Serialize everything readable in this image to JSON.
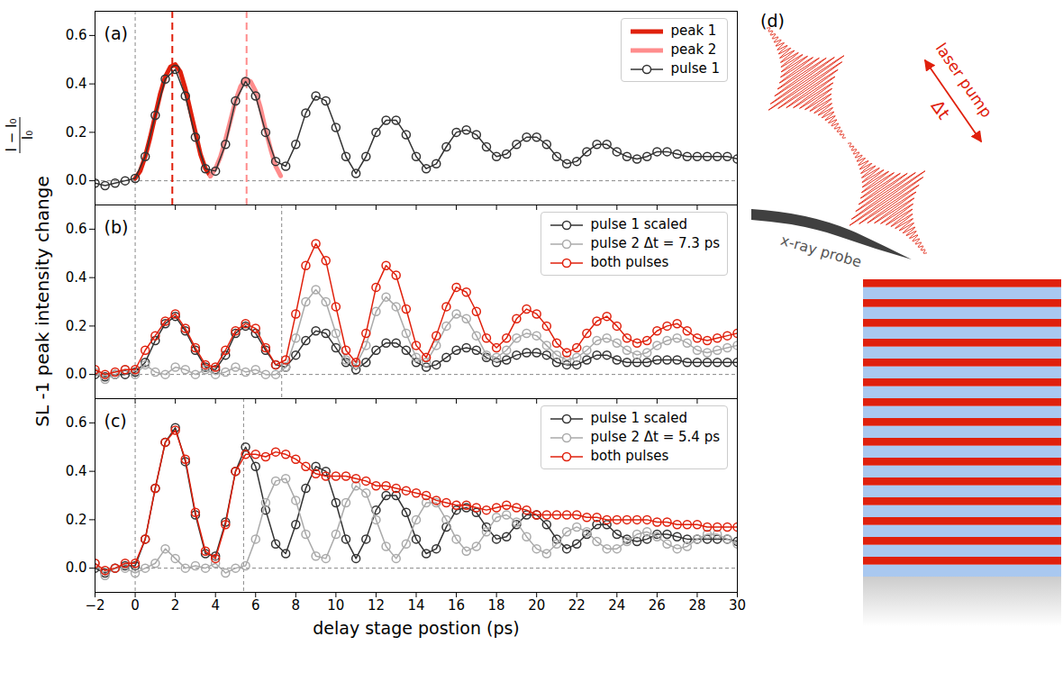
{
  "figure": {
    "y_label": "SL -1 peak intensity change",
    "y_label_fraction": {
      "numerator": "I − I₀",
      "denominator": "I₀"
    }
  },
  "chart_data": [
    {
      "type": "line",
      "label": "(a)",
      "legend": "upper right",
      "tick_labels": "y",
      "xlim": [
        -2,
        30
      ],
      "xticks": [
        {
          "value": -2,
          "label": "−2"
        },
        0,
        2,
        4,
        6,
        8,
        10,
        12,
        14,
        16,
        18,
        20,
        22,
        24,
        26,
        28,
        30
      ],
      "ylim": [
        -0.1,
        0.7
      ],
      "yticks": [
        {
          "value": 0,
          "label": "0.0"
        },
        0.2,
        0.4,
        0.6
      ],
      "reference_lines": {
        "x": [
          0
        ],
        "y": [
          0
        ]
      },
      "vlines": [
        {
          "x": 1.85,
          "color": "#e0200c"
        },
        {
          "x": 5.55,
          "color": "#ff8c8c"
        }
      ],
      "x": [
        -2,
        -1.5,
        -1,
        -0.5,
        0,
        0.5,
        1,
        1.5,
        2,
        2.5,
        3,
        3.5,
        4,
        4.5,
        5,
        5.5,
        6,
        6.5,
        7,
        7.5,
        8,
        8.5,
        9,
        9.5,
        10,
        10.5,
        11,
        11.5,
        12,
        12.5,
        13,
        13.5,
        14,
        14.5,
        15,
        15.5,
        16,
        16.5,
        17,
        17.5,
        18,
        18.5,
        19,
        19.5,
        20,
        20.5,
        21,
        21.5,
        22,
        22.5,
        23,
        23.5,
        24,
        24.5,
        25,
        25.5,
        26,
        26.5,
        27,
        27.5,
        28,
        28.5,
        29,
        29.5,
        30
      ],
      "series": [
        {
          "name": "peak 1",
          "color": "#e0200c",
          "marker": "none",
          "line_style": "thick",
          "x": [
            0,
            0.25,
            0.5,
            0.75,
            1,
            1.25,
            1.5,
            1.75,
            2,
            2.25,
            2.5,
            2.75,
            3,
            3.25,
            3.5,
            3.75
          ],
          "values": [
            0.01,
            0.04,
            0.1,
            0.18,
            0.27,
            0.36,
            0.43,
            0.47,
            0.48,
            0.45,
            0.38,
            0.29,
            0.2,
            0.11,
            0.05,
            0.02
          ]
        },
        {
          "name": "peak 2",
          "color": "#ff8c8c",
          "marker": "none",
          "line_style": "thick",
          "x": [
            3.75,
            4,
            4.25,
            4.5,
            4.75,
            5,
            5.25,
            5.5,
            5.75,
            6,
            6.25,
            6.5,
            6.75,
            7,
            7.25
          ],
          "values": [
            0.02,
            0.05,
            0.1,
            0.17,
            0.25,
            0.33,
            0.39,
            0.42,
            0.41,
            0.37,
            0.3,
            0.21,
            0.13,
            0.06,
            0.02
          ]
        },
        {
          "name": "pulse 1",
          "color": "#333333",
          "marker": "o",
          "line_style": "solid",
          "values": [
            -0.01,
            -0.02,
            -0.01,
            0.0,
            0.01,
            0.1,
            0.27,
            0.42,
            0.46,
            0.35,
            0.18,
            0.05,
            0.04,
            0.15,
            0.33,
            0.41,
            0.35,
            0.2,
            0.08,
            0.06,
            0.15,
            0.28,
            0.35,
            0.33,
            0.22,
            0.1,
            0.03,
            0.1,
            0.2,
            0.25,
            0.25,
            0.19,
            0.1,
            0.05,
            0.07,
            0.14,
            0.2,
            0.21,
            0.19,
            0.14,
            0.1,
            0.11,
            0.15,
            0.18,
            0.18,
            0.15,
            0.1,
            0.07,
            0.08,
            0.12,
            0.15,
            0.15,
            0.12,
            0.1,
            0.09,
            0.1,
            0.12,
            0.12,
            0.11,
            0.1,
            0.1,
            0.1,
            0.1,
            0.1,
            0.09
          ]
        }
      ]
    },
    {
      "type": "line",
      "label": "(b)",
      "legend": "upper right",
      "tick_labels": "y",
      "xlim": [
        -2,
        30
      ],
      "xticks": [
        {
          "value": -2,
          "label": "−2"
        },
        0,
        2,
        4,
        6,
        8,
        10,
        12,
        14,
        16,
        18,
        20,
        22,
        24,
        26,
        28,
        30
      ],
      "ylim": [
        -0.1,
        0.7
      ],
      "yticks": [
        {
          "value": 0,
          "label": "0.0"
        },
        0.2,
        0.4,
        0.6
      ],
      "reference_lines": {
        "x": [
          0,
          7.3
        ],
        "y": [
          0
        ]
      },
      "x": [
        -2,
        -1.5,
        -1,
        -0.5,
        0,
        0.5,
        1,
        1.5,
        2,
        2.5,
        3,
        3.5,
        4,
        4.5,
        5,
        5.5,
        6,
        6.5,
        7,
        7.5,
        8,
        8.5,
        9,
        9.5,
        10,
        10.5,
        11,
        11.5,
        12,
        12.5,
        13,
        13.5,
        14,
        14.5,
        15,
        15.5,
        16,
        16.5,
        17,
        17.5,
        18,
        18.5,
        19,
        19.5,
        20,
        20.5,
        21,
        21.5,
        22,
        22.5,
        23,
        23.5,
        24,
        24.5,
        25,
        25.5,
        26,
        26.5,
        27,
        27.5,
        28,
        28.5,
        29,
        29.5,
        30
      ],
      "series": [
        {
          "name": "pulse 1 scaled",
          "color": "#333333",
          "marker": "o",
          "line_style": "solid",
          "values": [
            0,
            -0.01,
            0,
            0,
            0.01,
            0.05,
            0.14,
            0.21,
            0.24,
            0.18,
            0.1,
            0.03,
            0.02,
            0.08,
            0.17,
            0.2,
            0.17,
            0.1,
            0.04,
            0.03,
            0.08,
            0.14,
            0.18,
            0.17,
            0.11,
            0.05,
            0.02,
            0.05,
            0.1,
            0.13,
            0.13,
            0.1,
            0.05,
            0.03,
            0.04,
            0.07,
            0.1,
            0.11,
            0.1,
            0.07,
            0.05,
            0.06,
            0.08,
            0.09,
            0.09,
            0.08,
            0.05,
            0.04,
            0.04,
            0.06,
            0.08,
            0.08,
            0.06,
            0.05,
            0.05,
            0.05,
            0.06,
            0.06,
            0.06,
            0.05,
            0.05,
            0.05,
            0.05,
            0.05,
            0.05
          ]
        },
        {
          "name": "pulse 2 Δt = 7.3 ps",
          "color": "#aaaaaa",
          "marker": "o",
          "line_style": "solid",
          "values": [
            0.01,
            -0.02,
            0,
            0.02,
            0,
            0.04,
            0.01,
            0,
            0.03,
            0.02,
            0,
            0.02,
            0,
            0.01,
            0.03,
            0.01,
            0.02,
            0,
            0,
            0.03,
            0.15,
            0.3,
            0.35,
            0.3,
            0.17,
            0.06,
            0.04,
            0.12,
            0.26,
            0.32,
            0.28,
            0.17,
            0.07,
            0.05,
            0.12,
            0.2,
            0.25,
            0.23,
            0.16,
            0.08,
            0.07,
            0.1,
            0.15,
            0.17,
            0.16,
            0.12,
            0.08,
            0.06,
            0.07,
            0.1,
            0.14,
            0.15,
            0.13,
            0.1,
            0.08,
            0.09,
            0.12,
            0.14,
            0.15,
            0.13,
            0.1,
            0.09,
            0.1,
            0.11,
            0.12
          ]
        },
        {
          "name": "both pulses",
          "color": "#e0200c",
          "marker": "o",
          "line_style": "solid",
          "values": [
            0.02,
            0,
            0.01,
            0.02,
            0.02,
            0.1,
            0.16,
            0.22,
            0.25,
            0.19,
            0.11,
            0.04,
            0.03,
            0.1,
            0.18,
            0.21,
            0.19,
            0.11,
            0.04,
            0.06,
            0.25,
            0.45,
            0.54,
            0.47,
            0.28,
            0.1,
            0.05,
            0.17,
            0.36,
            0.45,
            0.41,
            0.27,
            0.12,
            0.07,
            0.16,
            0.28,
            0.36,
            0.34,
            0.26,
            0.15,
            0.11,
            0.15,
            0.23,
            0.27,
            0.25,
            0.2,
            0.13,
            0.09,
            0.11,
            0.17,
            0.22,
            0.24,
            0.2,
            0.15,
            0.13,
            0.14,
            0.18,
            0.2,
            0.21,
            0.18,
            0.15,
            0.14,
            0.15,
            0.16,
            0.17
          ]
        }
      ]
    },
    {
      "type": "line",
      "label": "(c)",
      "legend": "upper right",
      "x_label": "delay stage postion (ps)",
      "xlim": [
        -2,
        30
      ],
      "xticks": [
        {
          "value": -2,
          "label": "−2"
        },
        0,
        2,
        4,
        6,
        8,
        10,
        12,
        14,
        16,
        18,
        20,
        22,
        24,
        26,
        28,
        30
      ],
      "ylim": [
        -0.1,
        0.7
      ],
      "yticks": [
        {
          "value": 0,
          "label": "0.0"
        },
        0.2,
        0.4,
        0.6
      ],
      "reference_lines": {
        "x": [
          0,
          5.4
        ],
        "y": [
          0
        ]
      },
      "x": [
        -2,
        -1.5,
        -1,
        -0.5,
        0,
        0.5,
        1,
        1.5,
        2,
        2.5,
        3,
        3.5,
        4,
        4.5,
        5,
        5.5,
        6,
        6.5,
        7,
        7.5,
        8,
        8.5,
        9,
        9.5,
        10,
        10.5,
        11,
        11.5,
        12,
        12.5,
        13,
        13.5,
        14,
        14.5,
        15,
        15.5,
        16,
        16.5,
        17,
        17.5,
        18,
        18.5,
        19,
        19.5,
        20,
        20.5,
        21,
        21.5,
        22,
        22.5,
        23,
        23.5,
        24,
        24.5,
        25,
        25.5,
        26,
        26.5,
        27,
        27.5,
        28,
        28.5,
        29,
        29.5,
        30
      ],
      "series": [
        {
          "name": "pulse 1 scaled",
          "color": "#333333",
          "marker": "o",
          "line_style": "solid",
          "values": [
            0,
            -0.02,
            0,
            0.01,
            0.01,
            0.12,
            0.33,
            0.52,
            0.58,
            0.44,
            0.22,
            0.06,
            0.05,
            0.19,
            0.4,
            0.5,
            0.42,
            0.24,
            0.1,
            0.06,
            0.18,
            0.33,
            0.42,
            0.4,
            0.27,
            0.12,
            0.04,
            0.12,
            0.24,
            0.3,
            0.3,
            0.23,
            0.12,
            0.06,
            0.08,
            0.17,
            0.24,
            0.25,
            0.23,
            0.17,
            0.12,
            0.13,
            0.18,
            0.22,
            0.22,
            0.18,
            0.12,
            0.08,
            0.1,
            0.14,
            0.18,
            0.18,
            0.14,
            0.12,
            0.11,
            0.12,
            0.14,
            0.14,
            0.13,
            0.12,
            0.12,
            0.12,
            0.12,
            0.12,
            0.11
          ]
        },
        {
          "name": "pulse 2 Δt = 5.4 ps",
          "color": "#aaaaaa",
          "marker": "o",
          "line_style": "solid",
          "values": [
            0.02,
            -0.03,
            0,
            0,
            -0.02,
            0,
            0.02,
            0.08,
            0.04,
            0,
            0.01,
            0,
            0.02,
            -0.02,
            0,
            0.01,
            0.12,
            0.27,
            0.36,
            0.37,
            0.28,
            0.14,
            0.05,
            0.04,
            0.14,
            0.27,
            0.34,
            0.31,
            0.2,
            0.09,
            0.04,
            0.1,
            0.2,
            0.27,
            0.27,
            0.2,
            0.12,
            0.07,
            0.09,
            0.15,
            0.21,
            0.22,
            0.19,
            0.13,
            0.08,
            0.06,
            0.1,
            0.15,
            0.17,
            0.15,
            0.11,
            0.08,
            0.08,
            0.11,
            0.14,
            0.15,
            0.13,
            0.1,
            0.08,
            0.09,
            0.12,
            0.14,
            0.14,
            0.12,
            0.1
          ]
        },
        {
          "name": "both pulses",
          "color": "#e0200c",
          "marker": "o",
          "line_style": "solid",
          "values": [
            0.02,
            -0.01,
            0,
            0.02,
            0.02,
            0.12,
            0.33,
            0.52,
            0.57,
            0.45,
            0.23,
            0.07,
            0.04,
            0.18,
            0.4,
            0.47,
            0.47,
            0.46,
            0.48,
            0.47,
            0.45,
            0.42,
            0.39,
            0.38,
            0.38,
            0.38,
            0.37,
            0.36,
            0.34,
            0.34,
            0.33,
            0.32,
            0.31,
            0.3,
            0.28,
            0.27,
            0.26,
            0.26,
            0.25,
            0.24,
            0.25,
            0.26,
            0.25,
            0.24,
            0.22,
            0.22,
            0.22,
            0.22,
            0.22,
            0.21,
            0.21,
            0.2,
            0.2,
            0.2,
            0.2,
            0.2,
            0.19,
            0.19,
            0.18,
            0.18,
            0.18,
            0.17,
            0.17,
            0.17,
            0.17
          ]
        }
      ]
    }
  ],
  "diagram": {
    "label": "(d)",
    "pump_label": "laser pump",
    "delay_label": "Δt",
    "probe_label": "x-ray probe",
    "periods": 15
  }
}
